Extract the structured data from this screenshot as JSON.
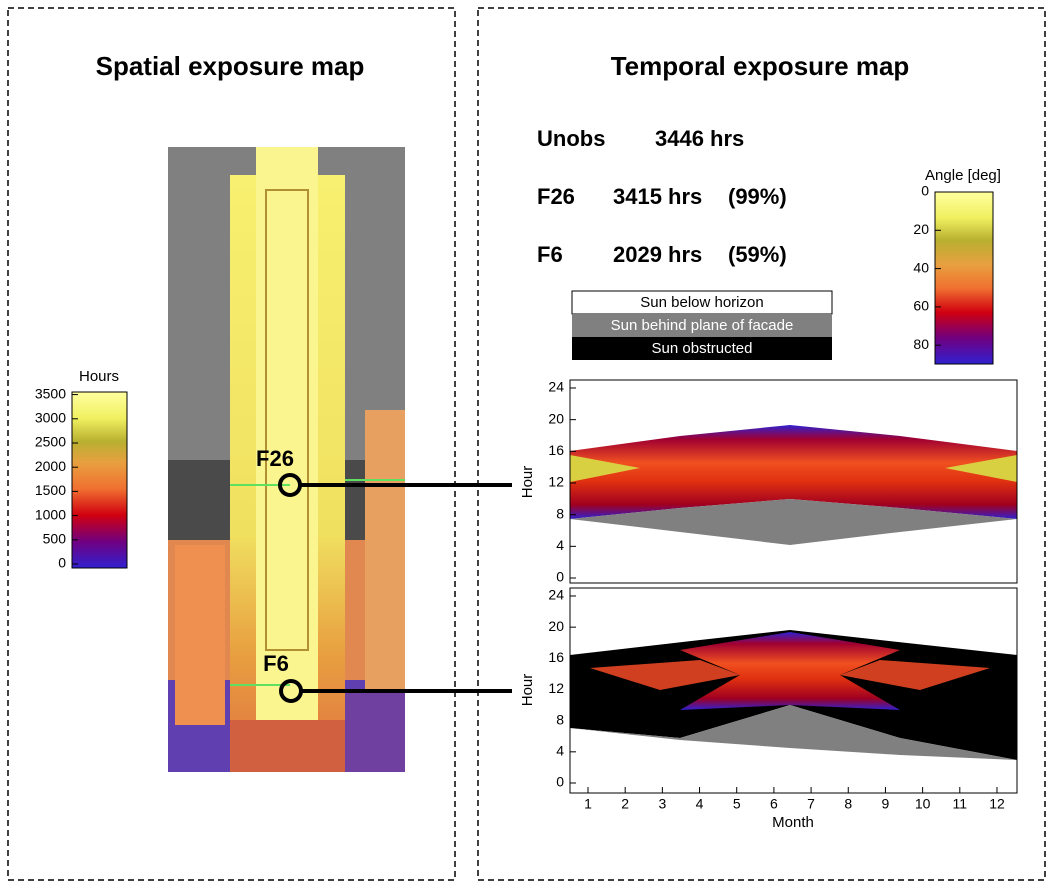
{
  "spatial": {
    "title": "Spatial exposure map",
    "colorbar": {
      "title": "Hours",
      "ticks": [
        0,
        500,
        1000,
        1500,
        2000,
        2500,
        3000,
        3500
      ]
    },
    "markers": [
      "F26",
      "F6"
    ]
  },
  "temporal": {
    "title": "Temporal exposure map",
    "stats": [
      {
        "label": "Unobs",
        "hours": "3446 hrs"
      },
      {
        "label": "F26",
        "hours": "3415 hrs",
        "percent": "(99%)"
      },
      {
        "label": "F6",
        "hours": "2029 hrs",
        "percent": "(59%)"
      }
    ],
    "legend": [
      "Sun below horizon",
      "Sun behind plane of facade",
      "Sun obstructed"
    ],
    "colorbar": {
      "title": "Angle [deg]",
      "ticks": [
        0,
        20,
        40,
        60,
        80
      ]
    },
    "plots": {
      "ylabel": "Hour",
      "yticks": [
        0,
        4,
        8,
        12,
        16,
        20,
        24
      ],
      "xlabel": "Month",
      "xticks": [
        1,
        2,
        3,
        4,
        5,
        6,
        7,
        8,
        9,
        10,
        11,
        12
      ]
    }
  }
}
